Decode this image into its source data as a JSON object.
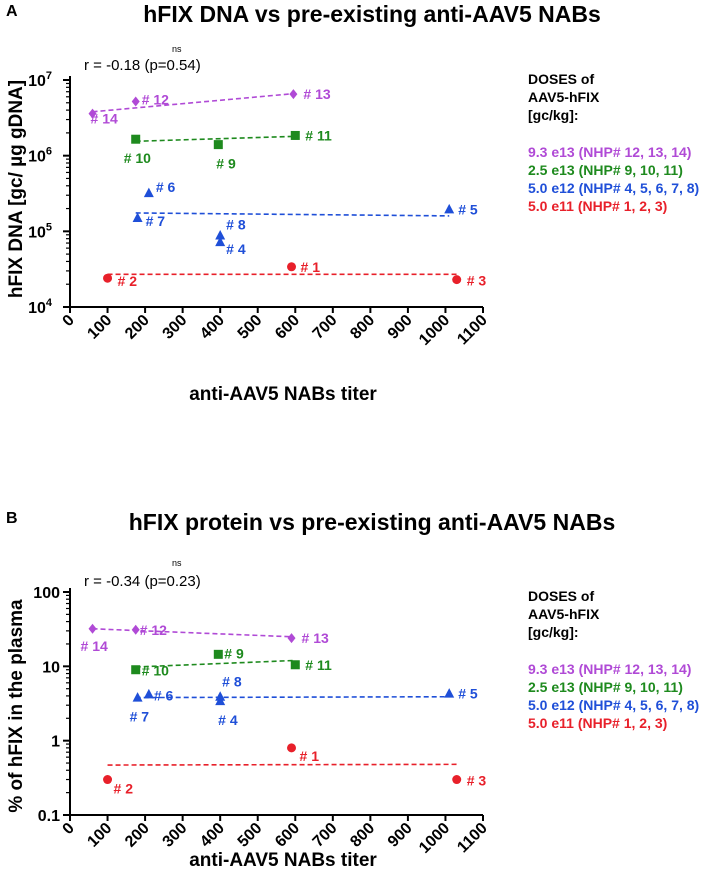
{
  "colors": {
    "dose_9_3e13": "#b04ad6",
    "dose_2_5e13": "#1e8a1e",
    "dose_5_0e12": "#1f4fd8",
    "dose_5_0e11": "#e8202a",
    "axis": "#000000"
  },
  "legend": {
    "title_lines": [
      "DOSES of",
      "AAV5-hFIX",
      "[gc/kg]:"
    ],
    "items": [
      {
        "label": "9.3 e13 (NHP# 12, 13, 14)",
        "color": "#b04ad6"
      },
      {
        "label": "2.5 e13 (NHP# 9, 10, 11)",
        "color": "#1e8a1e"
      },
      {
        "label": "5.0 e12 (NHP# 4, 5, 6, 7, 8)",
        "color": "#1f4fd8"
      },
      {
        "label": "5.0 e11 (NHP# 1, 2, 3)",
        "color": "#e8202a"
      }
    ]
  },
  "chart_data": [
    {
      "panel": "A",
      "type": "scatter",
      "title": "hFIX DNA vs pre-existing anti-AAV5 NABs",
      "stat_text": "r = -0.18 (p=0.54)",
      "significance": "ns",
      "xlabel": "anti-AAV5 NABs titer",
      "ylabel": "hFIX DNA [gc/ µg gDNA]",
      "xlim": [
        0,
        1100
      ],
      "ylim": [
        10000,
        10000000
      ],
      "yscale": "log",
      "xticks": [
        "0",
        "100",
        "200",
        "300",
        "400",
        "500",
        "600",
        "700",
        "800",
        "900",
        "1000",
        "1100"
      ],
      "yticks": [
        {
          "base": "10",
          "exp": "4"
        },
        {
          "base": "10",
          "exp": "5"
        },
        {
          "base": "10",
          "exp": "6"
        },
        {
          "base": "10",
          "exp": "7"
        }
      ],
      "series": [
        {
          "name": "9.3 e13",
          "color": "#b04ad6",
          "marker": "diamond",
          "points": [
            {
              "x": 60,
              "y": 3600000,
              "label": "# 14"
            },
            {
              "x": 175,
              "y": 5200000,
              "label": "# 12"
            },
            {
              "x": 595,
              "y": 6500000,
              "label": "# 13"
            }
          ],
          "fit": [
            [
              60,
              3800000
            ],
            [
              595,
              6600000
            ]
          ]
        },
        {
          "name": "2.5 e13",
          "color": "#1e8a1e",
          "marker": "square",
          "points": [
            {
              "x": 175,
              "y": 1650000,
              "label": "# 10"
            },
            {
              "x": 395,
              "y": 1400000,
              "label": "# 9"
            },
            {
              "x": 600,
              "y": 1850000,
              "label": "# 11"
            }
          ],
          "fit": [
            [
              175,
              1550000
            ],
            [
              600,
              1800000
            ]
          ]
        },
        {
          "name": "5.0 e12",
          "color": "#1f4fd8",
          "marker": "triangle",
          "points": [
            {
              "x": 210,
              "y": 320000,
              "label": "# 6"
            },
            {
              "x": 180,
              "y": 150000,
              "label": "# 7"
            },
            {
              "x": 400,
              "y": 88000,
              "label": "# 8"
            },
            {
              "x": 400,
              "y": 72000,
              "label": "# 4"
            },
            {
              "x": 1010,
              "y": 195000,
              "label": "# 5"
            }
          ],
          "fit": [
            [
              175,
              175000
            ],
            [
              1010,
              160000
            ]
          ]
        },
        {
          "name": "5.0 e11",
          "color": "#e8202a",
          "marker": "circle",
          "points": [
            {
              "x": 590,
              "y": 34000,
              "label": "# 1"
            },
            {
              "x": 100,
              "y": 24000,
              "label": "# 2"
            },
            {
              "x": 1030,
              "y": 23000,
              "label": "# 3"
            }
          ],
          "fit": [
            [
              100,
              27000
            ],
            [
              1030,
              27000
            ]
          ]
        }
      ]
    },
    {
      "panel": "B",
      "type": "scatter",
      "title": "hFIX protein vs pre-existing anti-AAV5 NABs",
      "stat_text": "r = -0.34 (p=0.23)",
      "significance": "ns",
      "xlabel": "anti-AAV5 NABs titer",
      "ylabel": "% of hFIX in the plasma",
      "xlim": [
        0,
        1100
      ],
      "ylim": [
        0.1,
        100
      ],
      "yscale": "log",
      "xticks": [
        "0",
        "100",
        "200",
        "300",
        "400",
        "500",
        "600",
        "700",
        "800",
        "900",
        "1000",
        "1100"
      ],
      "yticks": [
        {
          "base": "0.1",
          "exp": ""
        },
        {
          "base": "1",
          "exp": ""
        },
        {
          "base": "10",
          "exp": ""
        },
        {
          "base": "100",
          "exp": ""
        }
      ],
      "series": [
        {
          "name": "9.3 e13",
          "color": "#b04ad6",
          "marker": "diamond",
          "points": [
            {
              "x": 60,
              "y": 32,
              "label": "# 14"
            },
            {
              "x": 175,
              "y": 31,
              "label": "# 12"
            },
            {
              "x": 590,
              "y": 24,
              "label": "# 13"
            }
          ],
          "fit": [
            [
              60,
              32
            ],
            [
              590,
              25
            ]
          ]
        },
        {
          "name": "2.5 e13",
          "color": "#1e8a1e",
          "marker": "square",
          "points": [
            {
              "x": 175,
              "y": 9,
              "label": "# 10"
            },
            {
              "x": 395,
              "y": 14.5,
              "label": "# 9"
            },
            {
              "x": 600,
              "y": 10.5,
              "label": "# 11"
            }
          ],
          "fit": [
            [
              175,
              9.8
            ],
            [
              600,
              12
            ]
          ]
        },
        {
          "name": "5.0 e12",
          "color": "#1f4fd8",
          "marker": "triangle",
          "points": [
            {
              "x": 180,
              "y": 3.8,
              "label": "# 7"
            },
            {
              "x": 210,
              "y": 4.2,
              "label": "# 6"
            },
            {
              "x": 400,
              "y": 3.4,
              "label": "# 4"
            },
            {
              "x": 400,
              "y": 3.9,
              "label": "# 8"
            },
            {
              "x": 1010,
              "y": 4.3,
              "label": "# 5"
            }
          ],
          "fit": [
            [
              175,
              3.8
            ],
            [
              1010,
              3.9
            ]
          ]
        },
        {
          "name": "5.0 e11",
          "color": "#e8202a",
          "marker": "circle",
          "points": [
            {
              "x": 590,
              "y": 0.8,
              "label": "# 1"
            },
            {
              "x": 100,
              "y": 0.3,
              "label": "# 2"
            },
            {
              "x": 1030,
              "y": 0.3,
              "label": "# 3"
            }
          ],
          "fit": [
            [
              100,
              0.47
            ],
            [
              1030,
              0.48
            ]
          ]
        }
      ]
    }
  ]
}
